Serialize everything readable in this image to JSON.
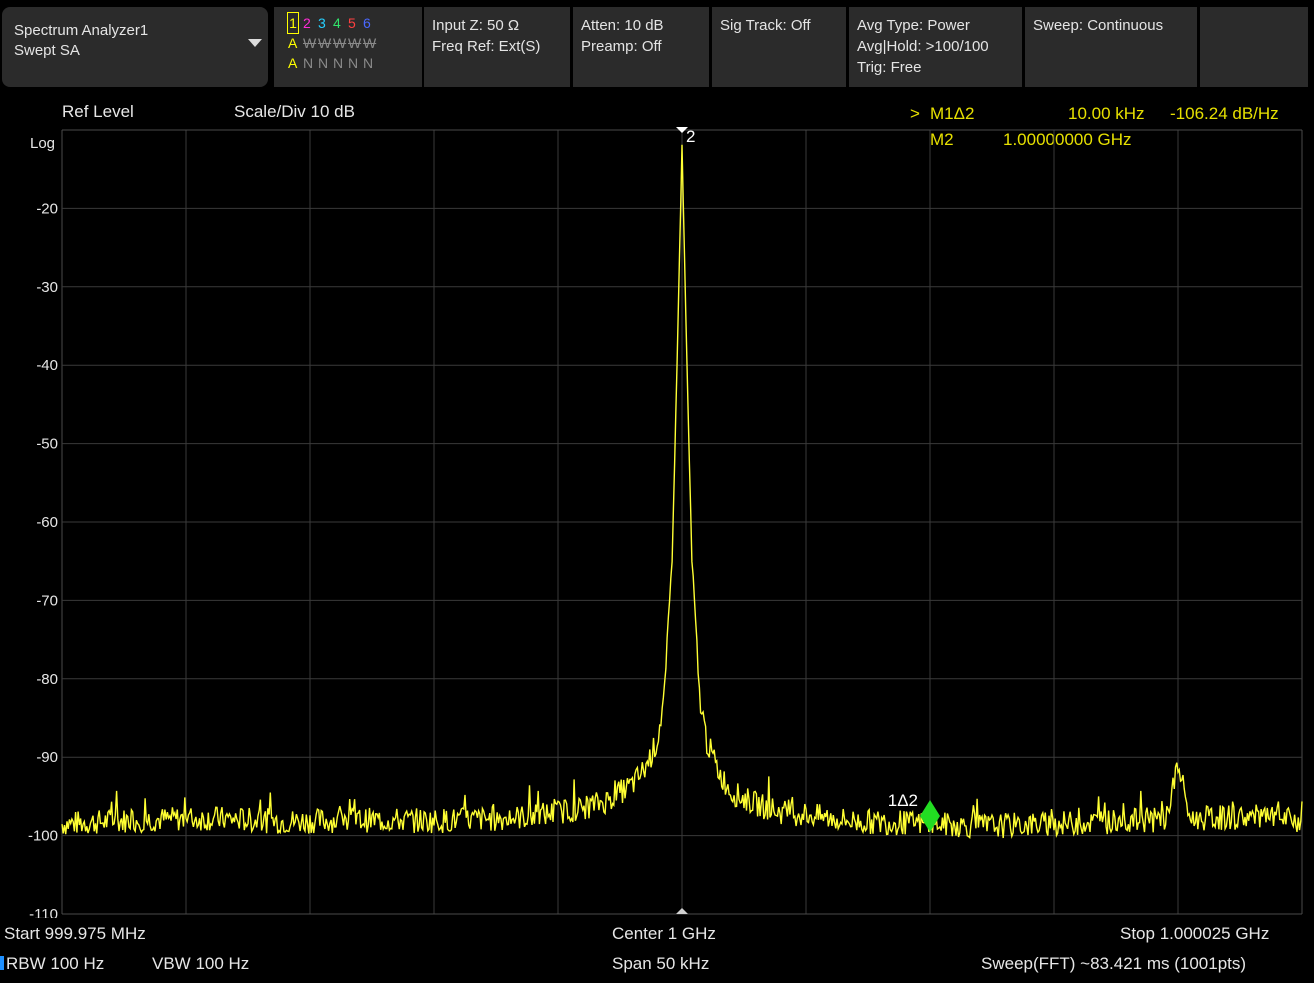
{
  "mode": {
    "title": "Spectrum Analyzer1",
    "subtitle": "Swept SA"
  },
  "traces": {
    "numbers": [
      "1",
      "2",
      "3",
      "4",
      "5",
      "6"
    ],
    "number_colors": [
      "#ffff00",
      "#ff2bd6",
      "#25d0ff",
      "#31e36a",
      "#ff4040",
      "#4a68ff"
    ],
    "types": [
      "A",
      "W",
      "W",
      "W",
      "W",
      "W"
    ],
    "detectors": [
      "A",
      "N",
      "N",
      "N",
      "N",
      "N"
    ]
  },
  "status": {
    "input_z": "Input Z: 50 Ω",
    "freq_ref": "Freq Ref: Ext(S)",
    "atten": "Atten: 10 dB",
    "preamp": "Preamp: Off",
    "sig_track": "Sig Track: Off",
    "avg_type": "Avg Type: Power",
    "avg_hold": "Avg|Hold: >100/100",
    "trig": "Trig: Free",
    "sweep": "Sweep: Continuous"
  },
  "header": {
    "ref_level": "Ref Level",
    "scale_div": "Scale/Div  10 dB",
    "log_label": "Log"
  },
  "markers": {
    "active_prefix": ">",
    "m1_name": "M1Δ2",
    "m1_freq": "10.00 kHz",
    "m1_value": "-106.24 dB/Hz",
    "m2_name": "M2",
    "m2_freq": "1.00000000 GHz",
    "m2_tag": "2",
    "delta_tag": "1Δ2"
  },
  "footer": {
    "start": "Start  999.975 MHz",
    "center": "Center  1 GHz",
    "stop": "Stop  1.000025 GHz",
    "rbw": "RBW  100 Hz",
    "vbw": "VBW  100 Hz",
    "span": "Span  50 kHz",
    "sweep_info": "Sweep(FFT)  ~83.421 ms (1001pts)"
  },
  "chart_data": {
    "type": "line",
    "x_unit": "MHz",
    "xlim": [
      999.975,
      1000.025
    ],
    "ylim": [
      -110,
      -10
    ],
    "y_ticks": [
      "-20",
      "-30",
      "-40",
      "-50",
      "-60",
      "-70",
      "-80",
      "-90",
      "-100",
      "-110"
    ],
    "grid": true,
    "series": [
      {
        "color": "#ffff33",
        "x": [
          999.975,
          999.978,
          999.981,
          999.984,
          999.987,
          999.99,
          999.993,
          999.994,
          999.995,
          999.996,
          999.997,
          999.998,
          999.9985,
          999.999,
          999.9993,
          999.9996,
          999.9998,
          1000.0,
          1000.0002,
          1000.0004,
          1000.0007,
          1000.001,
          1000.0015,
          1000.002,
          1000.003,
          1000.004,
          1000.005,
          1000.006,
          1000.007,
          1000.008,
          1000.01,
          1000.012,
          1000.014,
          1000.016,
          1000.018,
          1000.0195,
          1000.02,
          1000.0205,
          1000.021,
          1000.023,
          1000.025
        ],
        "values": [
          -98.5,
          -98.0,
          -97.8,
          -98.2,
          -98.0,
          -98.1,
          -97.8,
          -97.5,
          -97.0,
          -96.5,
          -95.5,
          -93.5,
          -91.5,
          -88,
          -82,
          -65,
          -40,
          -12,
          -40,
          -65,
          -82,
          -88,
          -92,
          -94.5,
          -96,
          -97,
          -97.3,
          -97.8,
          -98.2,
          -98.3,
          -98.5,
          -98.8,
          -98.6,
          -98.4,
          -98.1,
          -98.0,
          -91.0,
          -98.0,
          -97.8,
          -97.6,
          -98.2
        ]
      }
    ]
  }
}
